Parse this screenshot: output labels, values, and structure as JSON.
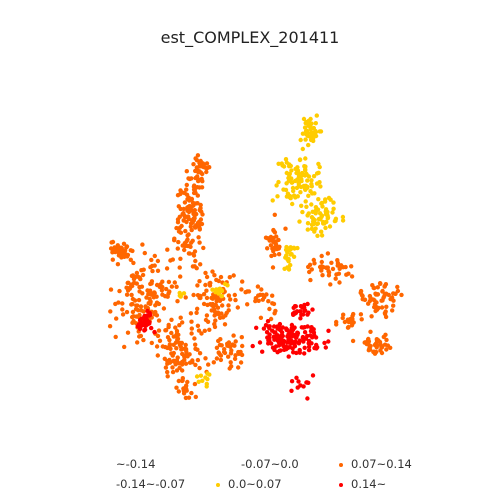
{
  "title": "est_COMPLEX_201411",
  "colors": {
    "orange": "#ff6600",
    "yellow": "#ffcc00",
    "red": "#ff0000"
  },
  "legend": [
    {
      "label": "~-0.14",
      "color": ""
    },
    {
      "label": "-0.07~0.0",
      "color": ""
    },
    {
      "label": "0.07~0.14",
      "color": "#ff6600"
    },
    {
      "label": "-0.14~-0.07",
      "color": ""
    },
    {
      "label": "0.0~0.07",
      "color": "#ffcc00"
    },
    {
      "label": "0.14~",
      "color": "#ff0000"
    }
  ]
}
